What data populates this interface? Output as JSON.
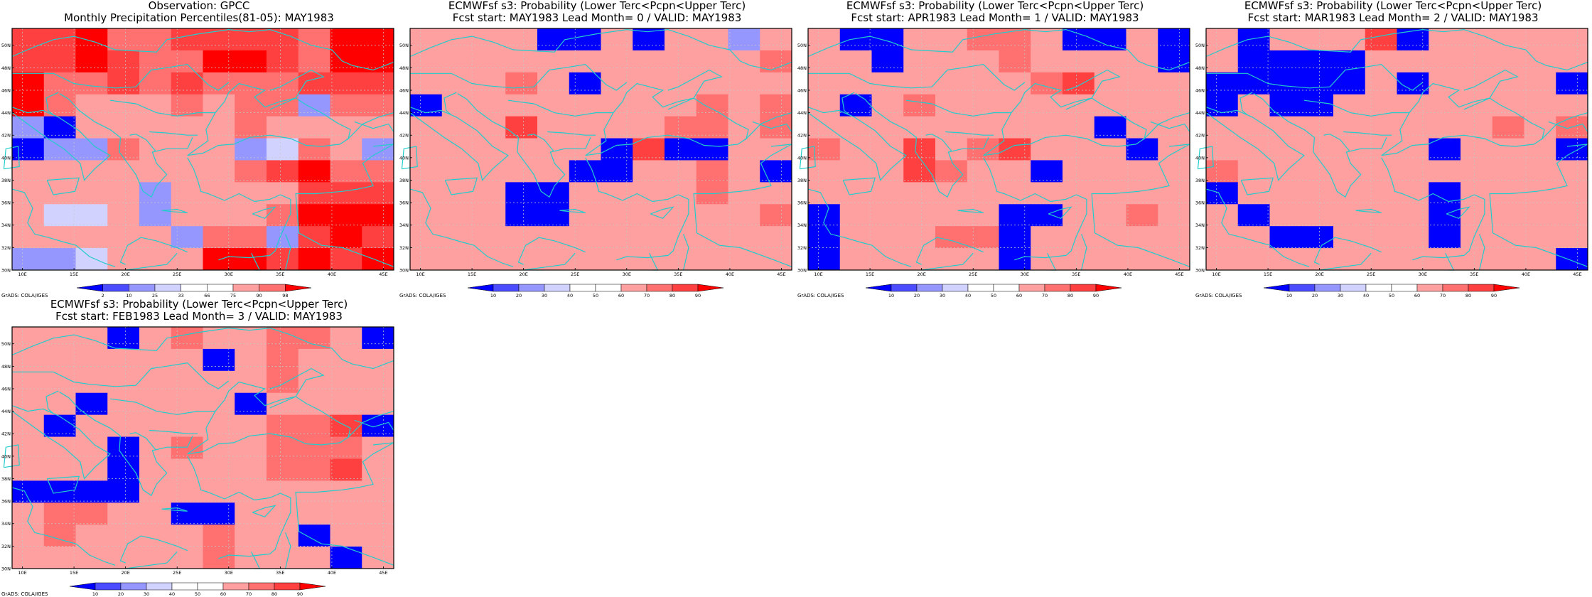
{
  "credit": "GrADS: COLA/IGES",
  "axes": {
    "lat_ticks": [
      "30N",
      "32N",
      "34N",
      "36N",
      "38N",
      "40N",
      "42N",
      "44N",
      "46N",
      "48N",
      "50N"
    ],
    "lon_ticks": [
      "10E",
      "15E",
      "20E",
      "25E",
      "30E",
      "35E",
      "40E",
      "45E"
    ],
    "lon_range": [
      9,
      46
    ],
    "lat_range": [
      30,
      51.5
    ]
  },
  "colors": {
    "prob_scale": [
      "#0000ff",
      "#4b4bff",
      "#9696ff",
      "#d2d2ff",
      "#ffffff",
      "#ffffff",
      "#ffa0a0",
      "#ff7070",
      "#ff4040",
      "#ff0000"
    ],
    "obs_scale": [
      "#0000ff",
      "#4b4bff",
      "#9696ff",
      "#d2d2ff",
      "#ffffff",
      "#ffffff",
      "#ffa0a0",
      "#ff7070",
      "#ff4040",
      "#ff0000"
    ],
    "coast": "#22cccc"
  },
  "panels": [
    {
      "title1": "Observation: GPCC",
      "title2": "Monthly Precipitation Percentiles(81-05): MAY1983",
      "colorbar_labels": [
        "2",
        "10",
        "25",
        "33",
        "66",
        "75",
        "90",
        "98"
      ],
      "kind": "obs",
      "grid": [
        "AAA9AAAAAAAA",
        "AAA9AAAAAA9A",
        "A9A99A9A99A9",
        "AAAA9A9A9A99",
        "9A9A9AAA9AAA",
        "99AA99AA9AA9",
        "9A99AA999AA9",
        "AAAA99AAAAAA",
        "AAAA9AA99AAA",
        "AAAA9AAA9AAA",
        "AAAAAAAAAAAA"
      ]
    },
    {
      "title1": "ECMWFsf s3: Probability (Lower Terc<Pcpn<Upper Terc)",
      "title2": "Fcst start: MAY1983   Lead Month= 0 / VALID: MAY1983",
      "colorbar_labels": [
        "10",
        "20",
        "30",
        "40",
        "50",
        "60",
        "70",
        "80",
        "90"
      ],
      "kind": "prob",
      "grid": [
        "A9AAAAA9A9AA",
        "AAAAAAA9A9AA",
        "A9AAA9AAAAA9",
        "AAA9AAA9A9AA",
        "AAA9A9AAAAA9",
        "A9AAAA9AAAAA",
        "AAAAAAA9AAAA",
        "AAAAAAAAAAAA",
        "AAAA9A9AA9AA",
        "A9A9AAAAA9AA",
        "AAAAAAAAAAAA"
      ]
    },
    {
      "title1": "ECMWFsf s3: Probability (Lower Terc<Pcpn<Upper Terc)",
      "title2": "Fcst start: APR1983   Lead Month= 1 / VALID: MAY1983",
      "colorbar_labels": [
        "10",
        "20",
        "30",
        "40",
        "50",
        "60",
        "70",
        "80",
        "90"
      ],
      "kind": "prob",
      "grid": [
        "AAAAAA9AAAAA",
        "AAAAAAAAAAAA",
        "AAAAAAAAAAAA",
        "AAAAAAAAAAAA",
        "AAAAAAAAAAAA",
        "AAAAAAAAAAAA",
        "AAAAAAAAAAAA",
        "AAAAAAAAAAAA",
        "AAAAAAAAAAAA",
        "AAAAAAAAAAAA",
        "AAAAAAAAAAAA"
      ]
    },
    {
      "title1": "ECMWFsf s3: Probability (Lower Terc<Pcpn<Upper Terc)",
      "title2": "Fcst start: MAR1983   Lead Month= 2 / VALID: MAY1983",
      "colorbar_labels": [
        "10",
        "20",
        "30",
        "40",
        "50",
        "60",
        "70",
        "80",
        "90"
      ],
      "kind": "prob",
      "grid": [
        "AAAAAAAAAAAA",
        "AAAAAAAAAAAA",
        "AAAAAAAAAAAA",
        "AAAAAAAAAAAA",
        "AAAAAAAAAAAA",
        "AAAAAAAAAAAA",
        "AAAAAAAAAAAA",
        "AAAAAAAAAAAA",
        "AAAAAAAAAAAA",
        "AAAAAAAAAAAA",
        "AAAAAAAAAAAA"
      ]
    },
    {
      "title1": "ECMWFsf s3: Probability (Lower Terc<Pcpn<Upper Terc)",
      "title2": "Fcst start: FEB1983   Lead Month= 3 / VALID: MAY1983",
      "colorbar_labels": [
        "10",
        "20",
        "30",
        "40",
        "50",
        "60",
        "70",
        "80",
        "90"
      ],
      "kind": "prob",
      "grid": [
        "AAAAAAAAAAAA",
        "AAAAAAAAAAAA",
        "AAAAAAAAAAAA",
        "AAAAAAAAAAAA",
        "AAAAAAAAAAAA",
        "AAAAAAAAAAAA",
        "AAAAAAAAAAAA",
        "AAAAAAAAAAAA",
        "AAAAAAAAAAAA",
        "AAAAAAAAAAAA",
        "AAAAAAAAAAAA"
      ]
    }
  ],
  "cells": [
    [
      [
        8,
        8,
        9,
        7,
        7,
        8,
        8,
        8,
        8,
        7,
        9,
        9
      ],
      [
        8,
        8,
        9,
        8,
        7,
        7,
        9,
        9,
        8,
        7,
        9,
        9
      ],
      [
        9,
        7,
        7,
        8,
        7,
        8,
        7,
        7,
        7,
        8,
        8,
        8
      ],
      [
        9,
        7,
        6,
        6,
        6,
        7,
        6,
        7,
        7,
        2,
        7,
        7
      ],
      [
        2,
        0,
        6,
        6,
        6,
        6,
        6,
        7,
        6,
        6,
        6,
        6
      ],
      [
        0,
        2,
        2,
        7,
        6,
        6,
        6,
        2,
        3,
        7,
        6,
        2
      ],
      [
        6,
        6,
        6,
        6,
        6,
        6,
        6,
        7,
        8,
        9,
        7,
        7
      ],
      [
        6,
        6,
        6,
        6,
        2,
        6,
        6,
        6,
        6,
        8,
        8,
        8
      ],
      [
        6,
        3,
        3,
        6,
        2,
        6,
        6,
        6,
        7,
        9,
        9,
        9
      ],
      [
        6,
        6,
        6,
        6,
        6,
        2,
        7,
        7,
        2,
        8,
        9,
        8
      ],
      [
        2,
        2,
        3,
        6,
        6,
        6,
        9,
        9,
        8,
        9,
        8,
        9
      ]
    ],
    [
      [
        6,
        6,
        6,
        6,
        0,
        0,
        6,
        0,
        6,
        6,
        2,
        6
      ],
      [
        6,
        6,
        6,
        6,
        6,
        6,
        6,
        6,
        6,
        6,
        6,
        7
      ],
      [
        6,
        6,
        6,
        7,
        6,
        0,
        6,
        6,
        6,
        6,
        6,
        6
      ],
      [
        0,
        6,
        6,
        6,
        6,
        6,
        6,
        6,
        6,
        7,
        6,
        7
      ],
      [
        6,
        6,
        6,
        8,
        6,
        6,
        6,
        6,
        7,
        7,
        6,
        7
      ],
      [
        6,
        6,
        6,
        6,
        6,
        6,
        0,
        8,
        0,
        0,
        6,
        6
      ],
      [
        6,
        6,
        6,
        6,
        6,
        0,
        0,
        6,
        6,
        7,
        6,
        0
      ],
      [
        6,
        6,
        6,
        0,
        0,
        6,
        6,
        6,
        6,
        7,
        6,
        6
      ],
      [
        6,
        6,
        6,
        0,
        0,
        6,
        6,
        6,
        6,
        6,
        6,
        7
      ],
      [
        6,
        6,
        6,
        6,
        6,
        6,
        6,
        6,
        6,
        6,
        6,
        6
      ],
      [
        6,
        6,
        6,
        6,
        6,
        6,
        6,
        6,
        6,
        6,
        6,
        6
      ]
    ]
  ]
}
